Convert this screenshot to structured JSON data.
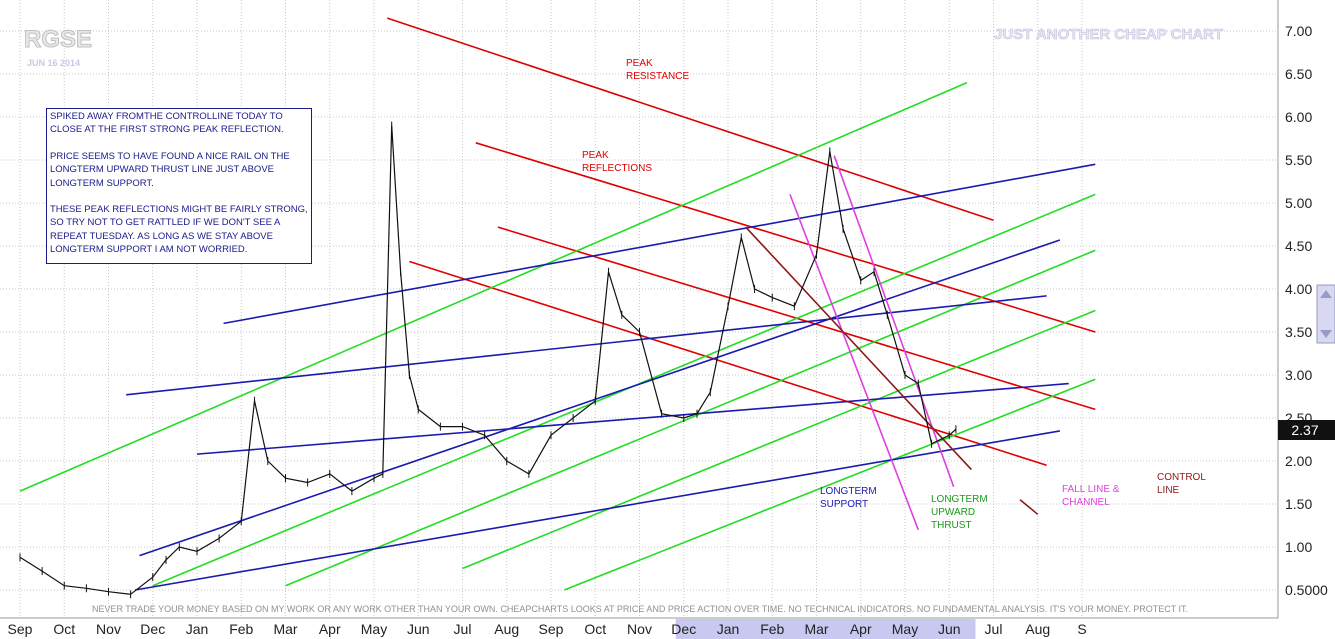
{
  "symbol": "RGSE",
  "date": "JUN 16 2014",
  "watermark": "JUST ANOTHER CHEAP CHART",
  "note": {
    "paragraphs": [
      "SPIKED AWAY FROMTHE CONTROLLINE TODAY TO CLOSE AT THE FIRST STRONG PEAK REFLECTION.",
      "PRICE SEEMS TO HAVE FOUND A NICE RAIL ON THE LONGTERM UPWARD THRUST LINE JUST ABOVE LONGTERM SUPPORT.",
      "THESE PEAK REFLECTIONS MIGHT BE FAIRLY STRONG, SO TRY NOT TO GET RATTLED IF WE DON'T SEE A REPEAT TUESDAY. AS LONG AS WE STAY ABOVE LONGTERM SUPPORT I AM NOT WORRIED."
    ]
  },
  "disclaimer": "NEVER TRADE YOUR MONEY BASED ON MY WORK OR ANY WORK OTHER THAN YOUR OWN. CHEAPCHARTS LOOKS AT PRICE AND PRICE ACTION OVER TIME. NO TECHNICAL INDICATORS. NO FUNDAMENTAL ANALYSIS. IT'S YOUR MONEY. PROTECT IT.",
  "current_price": "2.37",
  "colors": {
    "red": "#e00000",
    "green": "#22dd22",
    "blue": "#1a1ab0",
    "magenta": "#e040e0",
    "darkred": "#8b1a1a",
    "price": "#111111",
    "grid": "#c8c8c8",
    "highlight": "#c8c8f0"
  },
  "chart_data": {
    "type": "line",
    "title": "RGSE",
    "y_tick_labels": [
      "7.00",
      "6.50",
      "6.00",
      "5.50",
      "5.00",
      "4.50",
      "4.00",
      "3.50",
      "3.00",
      "2.50",
      "2.00",
      "1.50",
      "1.00",
      "0.5000"
    ],
    "x_tick_labels": [
      "Sep",
      "Oct",
      "Nov",
      "Dec",
      "Jan",
      "Feb",
      "Mar",
      "Apr",
      "May",
      "Jun",
      "Jul",
      "Aug",
      "Sep",
      "Oct",
      "Nov",
      "Dec",
      "Jan",
      "Feb",
      "Mar",
      "Apr",
      "May",
      "Jun",
      "Jul",
      "Aug",
      "S"
    ],
    "highlighted_months": [
      "Dec",
      "Jan",
      "Feb",
      "Mar",
      "Apr",
      "May",
      "Jun"
    ],
    "ylim": [
      0.4,
      7.2
    ],
    "price_series": {
      "name": "RGSE",
      "x_index": [
        0,
        0.5,
        1,
        1.5,
        2,
        2.5,
        3,
        3.3,
        3.6,
        4,
        4.5,
        5,
        5.3,
        5.6,
        6,
        6.5,
        7,
        7.5,
        8,
        8.2,
        8.4,
        8.6,
        8.8,
        9,
        9.5,
        10,
        10.5,
        11,
        11.5,
        12,
        12.5,
        13,
        13.3,
        13.6,
        14,
        14.5,
        15,
        15.3,
        15.6,
        16,
        16.3,
        16.6,
        17,
        17.5,
        18,
        18.3,
        18.6,
        19,
        19.3,
        19.6,
        20,
        20.3,
        20.6,
        21,
        21.15
      ],
      "close": [
        0.88,
        0.72,
        0.55,
        0.52,
        0.48,
        0.45,
        0.65,
        0.85,
        1.0,
        0.95,
        1.1,
        1.3,
        2.7,
        2.0,
        1.8,
        1.75,
        1.85,
        1.65,
        1.8,
        1.85,
        5.9,
        4.2,
        3.0,
        2.6,
        2.4,
        2.4,
        2.3,
        2.0,
        1.85,
        2.3,
        2.5,
        2.7,
        4.2,
        3.7,
        3.5,
        2.55,
        2.5,
        2.55,
        2.8,
        3.8,
        4.6,
        4.0,
        3.9,
        3.8,
        4.4,
        5.6,
        4.7,
        4.1,
        4.2,
        3.7,
        3.0,
        2.9,
        2.2,
        2.3,
        2.37
      ]
    },
    "trend_lines": [
      {
        "label": "PEAK RESISTANCE",
        "color": "red",
        "x": [
          8.3,
          22.0
        ],
        "y": [
          7.15,
          4.8
        ]
      },
      {
        "label": "PEAK REFLECTIONS",
        "color": "red",
        "x": [
          10.3,
          24.3
        ],
        "y": [
          5.7,
          3.5
        ]
      },
      {
        "label": "",
        "color": "red",
        "x": [
          10.8,
          24.3
        ],
        "y": [
          4.72,
          2.6
        ]
      },
      {
        "label": "",
        "color": "red",
        "x": [
          8.8,
          23.2
        ],
        "y": [
          4.32,
          1.95
        ]
      },
      {
        "label": "",
        "color": "green",
        "x": [
          0,
          21.4
        ],
        "y": [
          1.65,
          6.4
        ]
      },
      {
        "label": "",
        "color": "green",
        "x": [
          3.0,
          24.3
        ],
        "y": [
          0.55,
          5.1
        ]
      },
      {
        "label": "",
        "color": "green",
        "x": [
          6.0,
          24.3
        ],
        "y": [
          0.55,
          4.45
        ]
      },
      {
        "label": "",
        "color": "green",
        "x": [
          10.0,
          24.3
        ],
        "y": [
          0.75,
          3.75
        ]
      },
      {
        "label": "LONGTERM UPWARD THRUST",
        "color": "green",
        "x": [
          12.3,
          24.3
        ],
        "y": [
          0.5,
          2.95
        ]
      },
      {
        "label": "",
        "color": "blue",
        "x": [
          4.6,
          24.3
        ],
        "y": [
          3.6,
          5.45
        ]
      },
      {
        "label": "",
        "color": "blue",
        "x": [
          2.4,
          23.2
        ],
        "y": [
          2.77,
          3.92
        ]
      },
      {
        "label": "",
        "color": "blue",
        "x": [
          4.0,
          23.7
        ],
        "y": [
          2.08,
          2.9
        ]
      },
      {
        "label": "",
        "color": "blue",
        "x": [
          2.7,
          23.5
        ],
        "y": [
          0.9,
          4.57
        ]
      },
      {
        "label": "LONGTERM SUPPORT",
        "color": "blue",
        "x": [
          2.6,
          23.5
        ],
        "y": [
          0.5,
          2.35
        ]
      },
      {
        "label": "FALL LINE & CHANNEL",
        "color": "magenta",
        "x": [
          18.4,
          21.1
        ],
        "y": [
          5.55,
          1.7
        ]
      },
      {
        "label": "",
        "color": "magenta",
        "x": [
          17.4,
          20.3
        ],
        "y": [
          5.1,
          1.2
        ]
      },
      {
        "label": "CONTROL LINE",
        "color": "darkred",
        "x": [
          16.4,
          21.5
        ],
        "y": [
          4.72,
          1.9
        ]
      }
    ]
  },
  "annotations": {
    "peak_resistance": [
      "PEAK",
      "RESISTANCE"
    ],
    "peak_reflections": [
      "PEAK",
      "REFLECTIONS"
    ],
    "longterm_support": [
      "LONGTERM",
      "SUPPORT"
    ],
    "longterm_upward_thrust": [
      "LONGTERM",
      "UPWARD",
      "THRUST"
    ],
    "fall_line": [
      "FALL LINE &",
      "CHANNEL"
    ],
    "control_line": [
      "CONTROL",
      "LINE"
    ]
  }
}
